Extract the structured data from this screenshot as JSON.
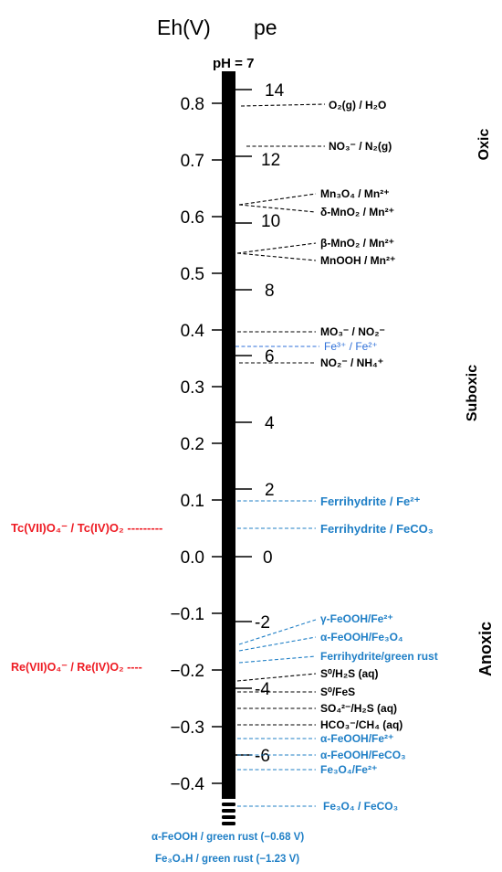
{
  "axes": {
    "eh_label": "Eh(V)",
    "pe_label": "pe",
    "ph_label": "pH = 7",
    "eh_ticks": [
      "0.8",
      "0.7",
      "0.6",
      "0.5",
      "0.4",
      "0.3",
      "0.2",
      "0.1",
      "0.0",
      "−0.1",
      "−0.2",
      "−0.3",
      "−0.4"
    ],
    "pe_ticks": [
      "14",
      "12",
      "10",
      "8",
      "6",
      "4",
      "2",
      "0",
      "-2",
      "-4",
      "-6"
    ]
  },
  "zones": [
    "Oxic",
    "Suboxic",
    "Anoxic"
  ],
  "couples": [
    {
      "label": "O₂(g) / H₂O",
      "color": "#000000"
    },
    {
      "label": "NO₃⁻ / N₂(g)",
      "color": "#000000"
    },
    {
      "label": "Mn₃O₄ / Mn²⁺",
      "color": "#000000"
    },
    {
      "label": "δ-MnO₂ / Mn²⁺",
      "color": "#000000"
    },
    {
      "label": "β-MnO₂ / Mn²⁺",
      "color": "#000000"
    },
    {
      "label": "MnOOH / Mn²⁺",
      "color": "#000000"
    },
    {
      "label": "MO₃⁻ / NO₂⁻",
      "color": "#000000"
    },
    {
      "label": "Fe³⁺ / Fe²⁺",
      "color": "#2e6fd8"
    },
    {
      "label": "NO₂⁻ / NH₄⁺",
      "color": "#000000"
    },
    {
      "label": "Ferrihydrite / Fe²⁺",
      "color": "#1f7fc6"
    },
    {
      "label": "Ferrihydrite / FeCO₃",
      "color": "#1f7fc6"
    },
    {
      "label": "γ-FeOOH/Fe²⁺",
      "color": "#1f7fc6"
    },
    {
      "label": "α-FeOOH/Fe₃O₄",
      "color": "#1f7fc6"
    },
    {
      "label": "Ferrihydrite/green rust",
      "color": "#1f7fc6"
    },
    {
      "label": "S⁰/H₂S (aq)",
      "color": "#000000"
    },
    {
      "label": "S⁰/FeS",
      "color": "#000000"
    },
    {
      "label": "SO₄²⁻/H₂S (aq)",
      "color": "#000000"
    },
    {
      "label": "HCO₃⁻/CH₄ (aq)",
      "color": "#000000"
    },
    {
      "label": "α-FeOOH/Fe²⁺",
      "color": "#1f7fc6"
    },
    {
      "label": "α-FeOOH/FeCO₃",
      "color": "#1f7fc6"
    },
    {
      "label": "Fe₃O₄/Fe²⁺",
      "color": "#1f7fc6"
    },
    {
      "label": "Fe₃O₄ / FeCO₃",
      "color": "#1f7fc6"
    }
  ],
  "external_couples": [
    {
      "label": "Tc(VII)O₄⁻ / Tc(IV)O₂ ---------",
      "color": "#ee1c24"
    },
    {
      "label": "Re(VII)O₄⁻ / Re(IV)O₂ ----",
      "color": "#ee1c24"
    }
  ],
  "footnotes": [
    "α-FeOOH / green rust (−0.68 V)",
    "Fe₃O₄H / green rust (−1.23 V)"
  ]
}
